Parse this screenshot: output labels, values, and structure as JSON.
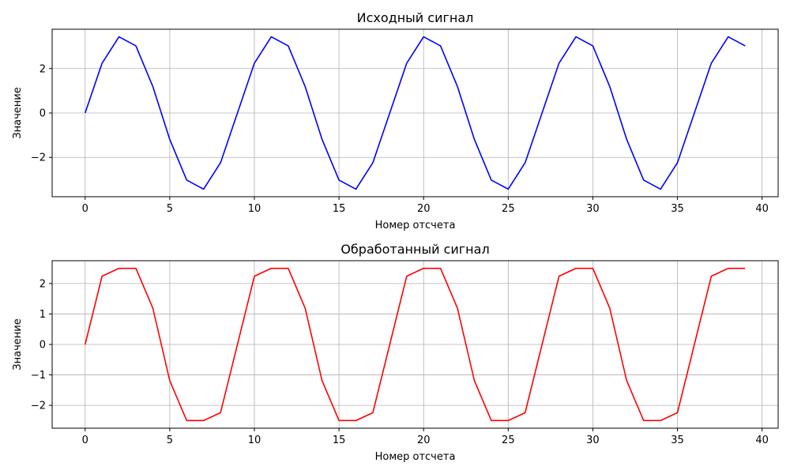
{
  "chart_data": [
    {
      "type": "line",
      "title": "Исходный сигнал",
      "xlabel": "Номер отсчета",
      "ylabel": "Значение",
      "xlim": [
        -1.95,
        40.95
      ],
      "ylim": [
        -3.77,
        3.77
      ],
      "xticks": [
        0,
        5,
        10,
        15,
        20,
        25,
        30,
        35,
        40
      ],
      "yticks": [
        -2,
        0,
        2
      ],
      "ytick_labels": [
        "−2",
        "0",
        "2"
      ],
      "grid": true,
      "series": [
        {
          "color": "#0000ff",
          "x": [
            0,
            1,
            2,
            3,
            4,
            5,
            6,
            7,
            8,
            9,
            10,
            11,
            12,
            13,
            14,
            15,
            16,
            17,
            18,
            19,
            20,
            21,
            22,
            23,
            24,
            25,
            26,
            27,
            28,
            29,
            30,
            31,
            32,
            33,
            34,
            35,
            36,
            37,
            38,
            39
          ],
          "y": [
            0,
            2.24,
            3.43,
            3.02,
            1.19,
            -1.19,
            -3.02,
            -3.43,
            -2.24,
            0,
            2.24,
            3.43,
            3.02,
            1.19,
            -1.19,
            -3.02,
            -3.43,
            -2.24,
            0,
            2.24,
            3.43,
            3.02,
            1.19,
            -1.19,
            -3.02,
            -3.43,
            -2.24,
            0,
            2.24,
            3.43,
            3.02,
            1.19,
            -1.19,
            -3.02,
            -3.43,
            -2.24,
            0,
            2.24,
            3.43,
            3.02
          ]
        }
      ]
    },
    {
      "type": "line",
      "title": "Обработанный сигнал",
      "xlabel": "Номер отсчета",
      "ylabel": "Значение",
      "xlim": [
        -1.95,
        40.95
      ],
      "ylim": [
        -2.75,
        2.75
      ],
      "xticks": [
        0,
        5,
        10,
        15,
        20,
        25,
        30,
        35,
        40
      ],
      "yticks": [
        -2,
        -1,
        0,
        1,
        2
      ],
      "ytick_labels": [
        "−2",
        "−1",
        "0",
        "1",
        "2"
      ],
      "grid": true,
      "series": [
        {
          "color": "#ff0000",
          "x": [
            0,
            1,
            2,
            3,
            4,
            5,
            6,
            7,
            8,
            9,
            10,
            11,
            12,
            13,
            14,
            15,
            16,
            17,
            18,
            19,
            20,
            21,
            22,
            23,
            24,
            25,
            26,
            27,
            28,
            29,
            30,
            31,
            32,
            33,
            34,
            35,
            36,
            37,
            38,
            39
          ],
          "y": [
            0,
            2.24,
            2.5,
            2.5,
            1.19,
            -1.19,
            -2.5,
            -2.5,
            -2.24,
            0,
            2.24,
            2.5,
            2.5,
            1.19,
            -1.19,
            -2.5,
            -2.5,
            -2.24,
            0,
            2.24,
            2.5,
            2.5,
            1.19,
            -1.19,
            -2.5,
            -2.5,
            -2.24,
            0,
            2.24,
            2.5,
            2.5,
            1.19,
            -1.19,
            -2.5,
            -2.5,
            -2.24,
            0,
            2.24,
            2.5,
            2.5
          ]
        }
      ]
    }
  ]
}
